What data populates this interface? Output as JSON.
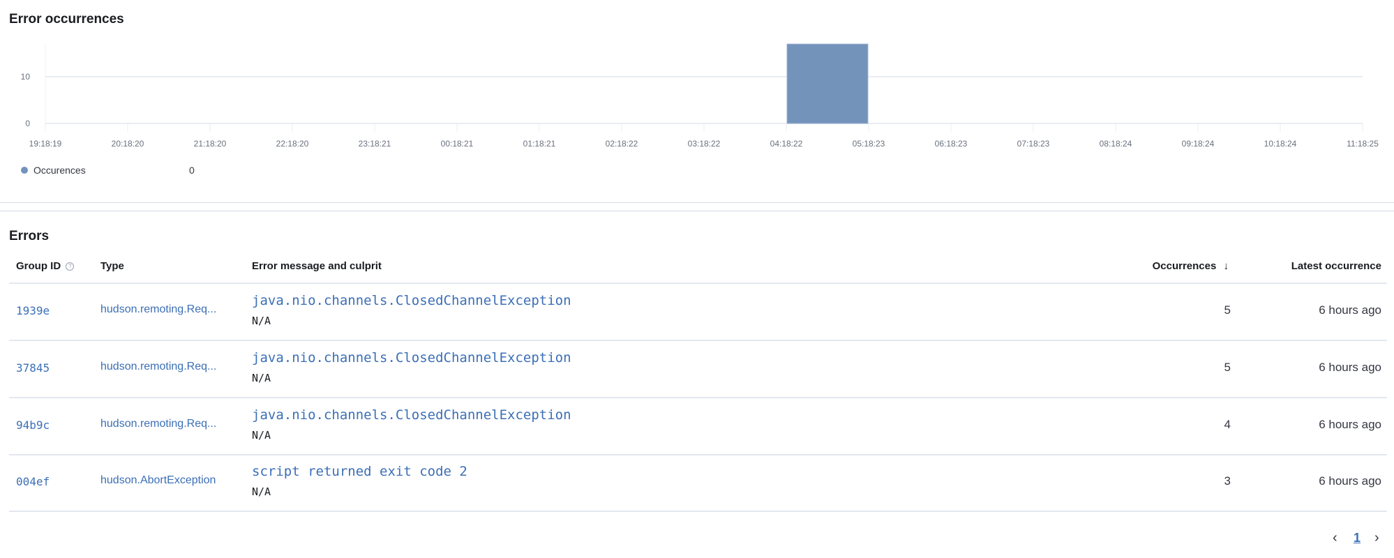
{
  "occurrences_panel": {
    "title": "Error occurrences",
    "legend": {
      "label": "Occurences",
      "value": "0"
    }
  },
  "chart_data": {
    "type": "bar",
    "title": "",
    "xlabel": "",
    "ylabel": "",
    "x_ticks": [
      "19:18:19",
      "20:18:20",
      "21:18:20",
      "22:18:20",
      "23:18:21",
      "00:18:21",
      "01:18:21",
      "02:18:22",
      "03:18:22",
      "04:18:22",
      "05:18:23",
      "06:18:23",
      "07:18:23",
      "08:18:24",
      "09:18:24",
      "10:18:24",
      "11:18:25"
    ],
    "y_ticks": [
      0,
      10
    ],
    "ylim": [
      0,
      20
    ],
    "grid": true,
    "series": [
      {
        "name": "Occurences",
        "color": "#7393bb",
        "bars": [
          {
            "start": "04:18:22",
            "end": "05:18:23",
            "value": 17
          }
        ]
      }
    ],
    "legend_position": "bottom-left"
  },
  "errors_panel": {
    "title": "Errors",
    "columns": {
      "group_id": "Group ID",
      "type": "Type",
      "message": "Error message and culprit",
      "occurrences": "Occurrences",
      "latest": "Latest occurrence"
    },
    "sort": {
      "column": "occurrences",
      "direction": "descending"
    },
    "rows": [
      {
        "group_id": "1939e",
        "type": "hudson.remoting.Req...",
        "message": "java.nio.channels.ClosedChannelException",
        "culprit": "N/A",
        "occurrences": "5",
        "latest": "6 hours ago"
      },
      {
        "group_id": "37845",
        "type": "hudson.remoting.Req...",
        "message": "java.nio.channels.ClosedChannelException",
        "culprit": "N/A",
        "occurrences": "5",
        "latest": "6 hours ago"
      },
      {
        "group_id": "94b9c",
        "type": "hudson.remoting.Req...",
        "message": "java.nio.channels.ClosedChannelException",
        "culprit": "N/A",
        "occurrences": "4",
        "latest": "6 hours ago"
      },
      {
        "group_id": "004ef",
        "type": "hudson.AbortException",
        "message": "script returned exit code 2",
        "culprit": "N/A",
        "occurrences": "3",
        "latest": "6 hours ago"
      }
    ],
    "pagination": {
      "current_page": "1",
      "prev": "‹",
      "next": "›"
    }
  },
  "colors": {
    "link": "#3b6fb6",
    "bar": "#7393bb"
  }
}
